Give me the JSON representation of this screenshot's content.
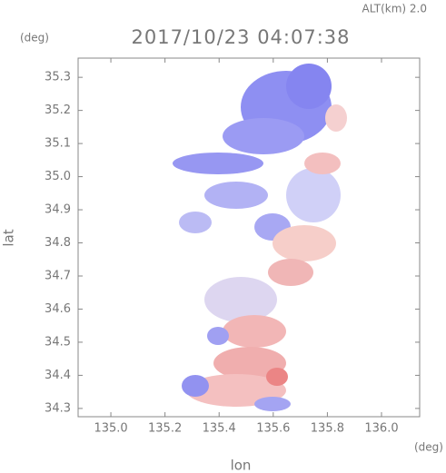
{
  "chart_data": {
    "type": "radar-map",
    "title": "2017/10/23 04:07:38",
    "subtitle": "ALT(km) 2.0",
    "x_label": "lon",
    "y_label": "lat",
    "x_unit": "(deg)",
    "y_unit": "(deg)",
    "xlim": [
      134.879,
      136.141
    ],
    "ylim": [
      34.275,
      35.358
    ],
    "xticks": [
      {
        "value": 135.0,
        "label": "135.0"
      },
      135.2,
      135.4,
      135.6,
      135.8,
      {
        "value": 136.0,
        "label": "136.0"
      }
    ],
    "yticks": [
      34.3,
      34.4,
      34.5,
      34.6,
      34.7,
      34.8,
      34.9,
      {
        "value": 35.0,
        "label": "35.0"
      },
      35.1,
      35.2,
      35.3
    ]
  }
}
